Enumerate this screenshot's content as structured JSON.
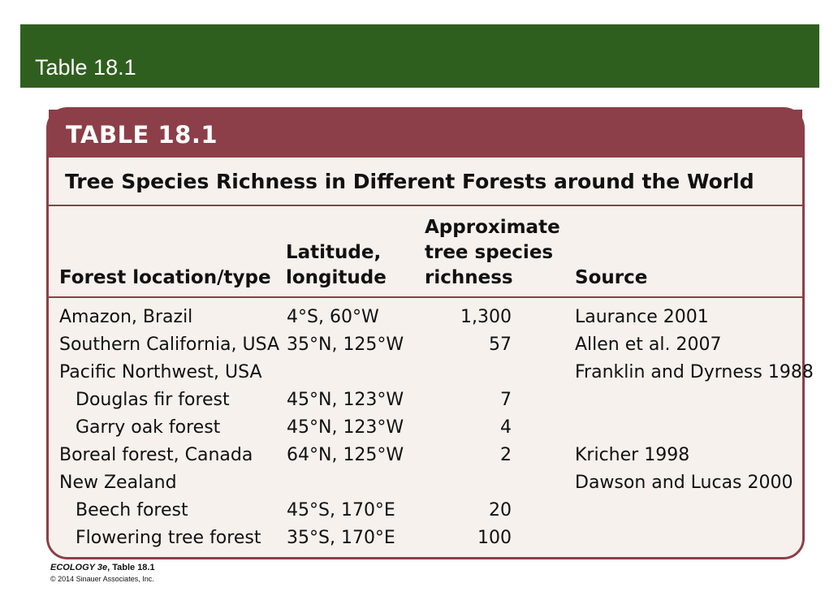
{
  "banner": {
    "title": "Table 18.1"
  },
  "table": {
    "label": "TABLE 18.1",
    "title": "Tree Species Richness in Different Forests around the World",
    "headers": {
      "location": "Forest location/type",
      "latlong_1": "Latitude,",
      "latlong_2": "longitude",
      "richness_1": "Approximate",
      "richness_2": "tree species",
      "richness_3": "richness",
      "source": "Source"
    },
    "rows": [
      {
        "location": "Amazon, Brazil",
        "latlong": "4°S, 60°W",
        "richness": "1,300",
        "source": "Laurance 2001",
        "indent": false
      },
      {
        "location": "Southern California, USA",
        "latlong": "35°N, 125°W",
        "richness": "57",
        "source": "Allen et al. 2007",
        "indent": false
      },
      {
        "location": "Pacific Northwest, USA",
        "latlong": "",
        "richness": "",
        "source": "Franklin and Dyrness 1988",
        "indent": false
      },
      {
        "location": "Douglas fir forest",
        "latlong": "45°N, 123°W",
        "richness": "7",
        "source": "",
        "indent": true
      },
      {
        "location": "Garry oak forest",
        "latlong": "45°N, 123°W",
        "richness": "4",
        "source": "",
        "indent": true
      },
      {
        "location": "Boreal forest, Canada",
        "latlong": "64°N, 125°W",
        "richness": "2",
        "source": "Kricher 1998",
        "indent": false
      },
      {
        "location": "New Zealand",
        "latlong": "",
        "richness": "",
        "source": "Dawson and Lucas 2000",
        "indent": false
      },
      {
        "location": "Beech forest",
        "latlong": "45°S, 170°E",
        "richness": "20",
        "source": "",
        "indent": true
      },
      {
        "location": "Flowering tree forest",
        "latlong": "35°S, 170°E",
        "richness": "100",
        "source": "",
        "indent": true
      }
    ]
  },
  "footer": {
    "book": "ECOLOGY 3e",
    "ref": ", Table 18.1",
    "copyright": "© 2014 Sinauer Associates, Inc."
  },
  "colors": {
    "banner": "#2f5f1e",
    "accent": "#8c3f48",
    "card": "#f6f1ec"
  }
}
